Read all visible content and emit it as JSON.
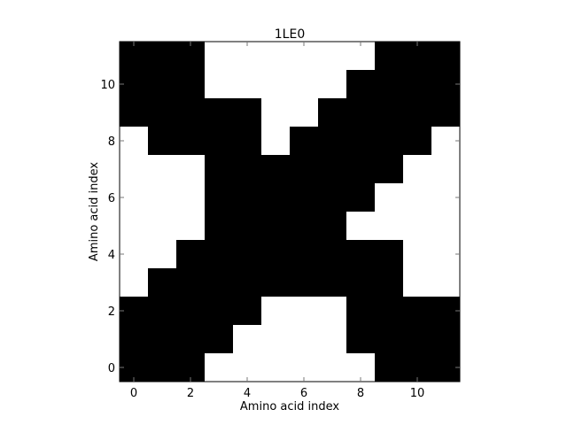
{
  "chart_data": {
    "type": "heatmap",
    "title": "1LE0",
    "xlabel": "Amino acid index",
    "ylabel": "Amino acid index",
    "xlim": [
      -0.5,
      11.5
    ],
    "ylim": [
      -0.5,
      11.5
    ],
    "xticks": [
      0,
      2,
      4,
      6,
      8,
      10
    ],
    "yticks": [
      0,
      2,
      4,
      6,
      8,
      10
    ],
    "grid": false,
    "colormap": {
      "1": "#000000",
      "0": "#ffffff"
    },
    "rows_index_from_top": [
      11,
      10,
      9,
      8,
      7,
      6,
      5,
      4,
      3,
      2,
      1,
      0
    ],
    "matrix": [
      [
        1,
        1,
        1,
        0,
        0,
        0,
        0,
        0,
        0,
        1,
        1,
        1
      ],
      [
        1,
        1,
        1,
        0,
        0,
        0,
        0,
        0,
        1,
        1,
        1,
        1
      ],
      [
        1,
        1,
        1,
        1,
        1,
        0,
        0,
        1,
        1,
        1,
        1,
        1
      ],
      [
        0,
        1,
        1,
        1,
        1,
        0,
        1,
        1,
        1,
        1,
        1,
        0
      ],
      [
        0,
        0,
        0,
        1,
        1,
        1,
        1,
        1,
        1,
        1,
        0,
        0
      ],
      [
        0,
        0,
        0,
        1,
        1,
        1,
        1,
        1,
        1,
        0,
        0,
        0
      ],
      [
        0,
        0,
        0,
        1,
        1,
        1,
        1,
        1,
        0,
        0,
        0,
        0
      ],
      [
        0,
        0,
        1,
        1,
        1,
        1,
        1,
        1,
        1,
        1,
        0,
        0
      ],
      [
        0,
        1,
        1,
        1,
        1,
        1,
        1,
        1,
        1,
        1,
        0,
        0
      ],
      [
        1,
        1,
        1,
        1,
        1,
        0,
        0,
        0,
        1,
        1,
        1,
        1
      ],
      [
        1,
        1,
        1,
        1,
        0,
        0,
        0,
        0,
        1,
        1,
        1,
        1
      ],
      [
        1,
        1,
        1,
        0,
        0,
        0,
        0,
        0,
        0,
        1,
        1,
        1
      ]
    ]
  }
}
